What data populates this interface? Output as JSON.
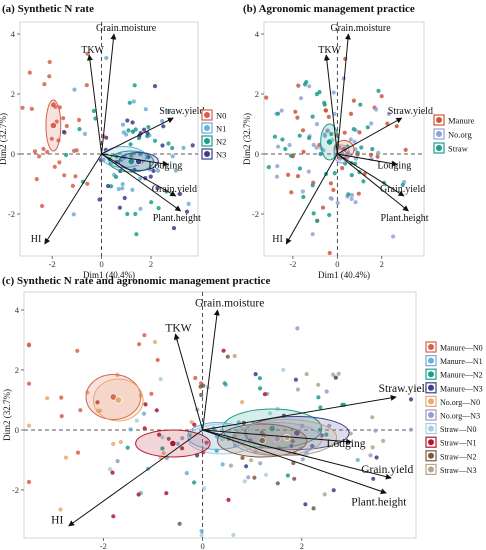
{
  "chart_data": [
    {
      "type": "scatter",
      "title": "(a) Synthetic N rate",
      "xlabel": "Dim1 (40.4%)",
      "ylabel": "Dim2 (32.7%)",
      "xlim": [
        -3.3,
        3.9
      ],
      "ylim": [
        -3.4,
        4.4
      ],
      "x_ticks": [
        -2,
        0,
        2
      ],
      "y_ticks": [
        -2,
        0,
        2,
        4
      ],
      "grid": false,
      "legend_position": "right",
      "series": [
        {
          "name": "N0",
          "color": "#d6604d",
          "center": [
            -1.95,
            0.95
          ],
          "ellipse": [
            0.3,
            0.85
          ]
        },
        {
          "name": "N1",
          "color": "#6baed6",
          "center": [
            0.9,
            -0.1
          ],
          "ellipse": [
            0.9,
            0.35
          ]
        },
        {
          "name": "N2",
          "color": "#1b9e8a",
          "center": [
            1.2,
            -0.25
          ],
          "ellipse": [
            0.9,
            0.35
          ]
        },
        {
          "name": "N3",
          "color": "#3b3f8c",
          "center": [
            1.5,
            -0.25
          ],
          "ellipse": [
            0.8,
            0.3
          ]
        }
      ],
      "variables": [
        {
          "name": "Grain.moisture",
          "x": 0.5,
          "y": 4.0
        },
        {
          "name": "TKW",
          "x": -0.5,
          "y": 3.3
        },
        {
          "name": "Straw.yield",
          "x": 2.9,
          "y": 1.2
        },
        {
          "name": "Lodging",
          "x": 2.7,
          "y": -0.35
        },
        {
          "name": "Grain.yield",
          "x": 3.0,
          "y": -1.4
        },
        {
          "name": "Plant.height",
          "x": 3.2,
          "y": -1.9
        },
        {
          "name": "HI",
          "x": -2.3,
          "y": -3.0
        }
      ]
    },
    {
      "type": "scatter",
      "title": "(b) Agronomic management practice",
      "xlabel": "Dim1 (40.4%)",
      "ylabel": "Dim2 (32.7%)",
      "xlim": [
        -3.3,
        3.9
      ],
      "ylim": [
        -3.4,
        4.4
      ],
      "x_ticks": [
        -2,
        0,
        2
      ],
      "y_ticks": [
        -2,
        0,
        2,
        4
      ],
      "grid": false,
      "legend_position": "right",
      "series": [
        {
          "name": "Manure",
          "color": "#c9583a",
          "center": [
            0.3,
            0.15
          ],
          "ellipse": [
            0.45,
            0.3
          ]
        },
        {
          "name": "No.org",
          "color": "#8fa3d6",
          "center": [
            0.2,
            0.0
          ],
          "ellipse": [
            0.35,
            0.3
          ]
        },
        {
          "name": "Straw",
          "color": "#1b9e8a",
          "center": [
            -0.35,
            0.4
          ],
          "ellipse": [
            0.4,
            0.6
          ]
        }
      ],
      "variables": [
        {
          "name": "Grain.moisture",
          "x": 0.5,
          "y": 4.0
        },
        {
          "name": "TKW",
          "x": -0.5,
          "y": 3.3
        },
        {
          "name": "Straw.yield",
          "x": 2.9,
          "y": 1.2
        },
        {
          "name": "Lodging",
          "x": 2.7,
          "y": -0.35
        },
        {
          "name": "Grain.yield",
          "x": 3.0,
          "y": -1.4
        },
        {
          "name": "Plant.height",
          "x": 3.2,
          "y": -1.9
        },
        {
          "name": "HI",
          "x": -2.3,
          "y": -3.0
        }
      ]
    },
    {
      "type": "scatter",
      "title": "(c) Synthetic N rate and agronomic management practice",
      "xlabel": "Dim1 (40.4%)",
      "ylabel": "Dim2 (32.7%)",
      "xlim": [
        -3.6,
        4.3
      ],
      "ylim": [
        -3.6,
        4.6
      ],
      "x_ticks": [
        -2,
        0,
        2
      ],
      "y_ticks": [
        -2,
        0,
        2,
        4
      ],
      "grid": false,
      "legend_position": "right",
      "series": [
        {
          "name": "Manure—N0",
          "color": "#d6604d",
          "center": [
            -1.8,
            1.1
          ],
          "ellipse": [
            0.55,
            0.75
          ]
        },
        {
          "name": "Manure—N1",
          "color": "#6baed6",
          "center": [
            0.3,
            -0.2
          ],
          "ellipse": [
            0.6,
            0.45
          ]
        },
        {
          "name": "Manure—N2",
          "color": "#1b9e8a",
          "center": [
            1.4,
            0.05
          ],
          "ellipse": [
            1.0,
            0.65
          ]
        },
        {
          "name": "Manure—N3",
          "color": "#3b3f8c",
          "center": [
            1.9,
            -0.1
          ],
          "ellipse": [
            1.05,
            0.55
          ]
        },
        {
          "name": "No.org—N0",
          "color": "#e9a86e",
          "center": [
            -1.7,
            1.0
          ],
          "ellipse": [
            0.5,
            0.7
          ]
        },
        {
          "name": "No.org—N3",
          "color": "#9e9ac8",
          "center": [
            1.5,
            -0.3
          ],
          "ellipse": [
            0.9,
            0.55
          ]
        },
        {
          "name": "Straw—N0",
          "color": "#a6cee3",
          "center": [
            0.4,
            -0.3
          ],
          "ellipse": [
            0.7,
            0.5
          ]
        },
        {
          "name": "Straw—N1",
          "color": "#b2182b",
          "center": [
            -0.6,
            -0.45
          ],
          "ellipse": [
            0.75,
            0.45
          ]
        },
        {
          "name": "Straw—N2",
          "color": "#7a5a3f",
          "center": [
            1.2,
            -0.35
          ],
          "ellipse": [
            0.9,
            0.55
          ]
        },
        {
          "name": "Straw—N3",
          "color": "#b5a48c",
          "center": [
            1.7,
            -0.25
          ],
          "ellipse": [
            1.0,
            0.6
          ]
        }
      ],
      "variables": [
        {
          "name": "Grain.moisture",
          "x": 0.3,
          "y": 4.0
        },
        {
          "name": "TKW",
          "x": -0.55,
          "y": 3.2
        },
        {
          "name": "Straw.yield",
          "x": 3.9,
          "y": 1.1
        },
        {
          "name": "Lodging",
          "x": 3.0,
          "y": -0.4
        },
        {
          "name": "Grain.yield",
          "x": 3.8,
          "y": -1.6
        },
        {
          "name": "Plant.height",
          "x": 3.7,
          "y": -2.1
        },
        {
          "name": "HI",
          "x": -2.7,
          "y": -3.2
        }
      ]
    }
  ]
}
